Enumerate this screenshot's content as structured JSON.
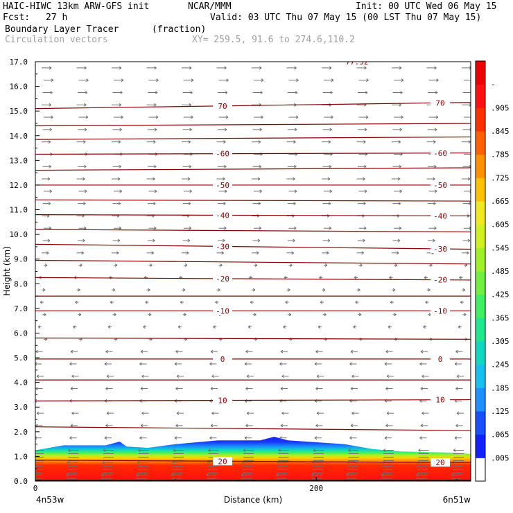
{
  "header": {
    "model": "HAIC-HIWC 13km ARW-GFS init",
    "org": "NCAR/MMM",
    "init": "Init: 00 UTC Wed 06 May 15",
    "fcst_label": "Fcst:",
    "fcst_value": "27 h",
    "valid": "Valid: 03 UTC Thu 07 May 15 (00 LST Thu 07 May 15)",
    "field_name": "Boundary Layer Tracer",
    "field_units": "(fraction)",
    "vector_name": "Circulation vectors",
    "xsec_coords": "XY= 259.5, 91.6 to 274.6,110.2"
  },
  "chart_data": {
    "type": "heatmap",
    "ylabel": "Height (km)",
    "xlabel": "Distance (km)",
    "ylim": [
      0,
      17
    ],
    "xlim": [
      0,
      310
    ],
    "y_ticks": [
      "0.0",
      "1.0",
      "2.0",
      "3.0",
      "4.0",
      "5.0",
      "6.0",
      "7.0",
      "8.0",
      "9.0",
      "10.0",
      "11.0",
      "12.0",
      "13.0",
      "14.0",
      "15.0",
      "16.0",
      "17.0"
    ],
    "x_ticks": [
      {
        "value": 0,
        "label": "0"
      },
      {
        "value": 200,
        "label": "200"
      }
    ],
    "x_end_labels": {
      "left": "4n53w",
      "right": "6n51w"
    },
    "tracer_top_km": [
      [
        0,
        1.25
      ],
      [
        20,
        1.45
      ],
      [
        50,
        1.45
      ],
      [
        60,
        1.6
      ],
      [
        65,
        1.4
      ],
      [
        80,
        1.35
      ],
      [
        100,
        1.5
      ],
      [
        130,
        1.65
      ],
      [
        160,
        1.65
      ],
      [
        170,
        1.8
      ],
      [
        180,
        1.65
      ],
      [
        220,
        1.5
      ],
      [
        240,
        1.3
      ],
      [
        260,
        1.2
      ],
      [
        300,
        1.15
      ],
      [
        310,
        1.1
      ]
    ],
    "contour_label": "77.52",
    "isotherms": [
      {
        "label": "70",
        "h0": 15.1,
        "h1": 15.35
      },
      {
        "label": "",
        "h0": 14.4,
        "h1": 14.5
      },
      {
        "label": "",
        "h0": 13.85,
        "h1": 13.95
      },
      {
        "label": "-60",
        "h0": 13.25,
        "h1": 13.3
      },
      {
        "label": "",
        "h0": 12.6,
        "h1": 12.7
      },
      {
        "label": "-50",
        "h0": 12.0,
        "h1": 12.0
      },
      {
        "label": "",
        "h0": 11.4,
        "h1": 11.35
      },
      {
        "label": "-40",
        "h0": 10.8,
        "h1": 10.75
      },
      {
        "label": "",
        "h0": 10.2,
        "h1": 10.1
      },
      {
        "label": "-30",
        "h0": 9.6,
        "h1": 9.4
      },
      {
        "label": "",
        "h0": 8.95,
        "h1": 8.8
      },
      {
        "label": "-20",
        "h0": 8.25,
        "h1": 8.15
      },
      {
        "label": "",
        "h0": 7.5,
        "h1": 7.5
      },
      {
        "label": "-10",
        "h0": 6.9,
        "h1": 6.9
      },
      {
        "label": "",
        "h0": 5.8,
        "h1": 5.75
      },
      {
        "label": "0",
        "h0": 4.95,
        "h1": 4.95
      },
      {
        "label": "",
        "h0": 4.1,
        "h1": 4.1
      },
      {
        "label": "10",
        "h0": 3.25,
        "h1": 3.3
      },
      {
        "label": "",
        "h0": 2.2,
        "h1": 2.05
      },
      {
        "label": "20",
        "h0": 0.85,
        "h1": 0.75
      }
    ],
    "colorbar": {
      "labels": [
        ".005",
        ".065",
        ".125",
        ".185",
        ".245",
        ".305",
        ".365",
        ".425",
        ".485",
        ".545",
        ".605",
        ".665",
        ".725",
        ".785",
        ".845",
        ".905",
        "-"
      ],
      "colors": [
        "#ffffff",
        "#1020ff",
        "#1850ff",
        "#1e90ff",
        "#18c0f0",
        "#10d8c0",
        "#20e890",
        "#40f060",
        "#70f040",
        "#a0f028",
        "#d0f020",
        "#f0e820",
        "#ffc000",
        "#ff9000",
        "#ff6000",
        "#ff3000",
        "#ff1010",
        "#ee0000"
      ]
    }
  }
}
